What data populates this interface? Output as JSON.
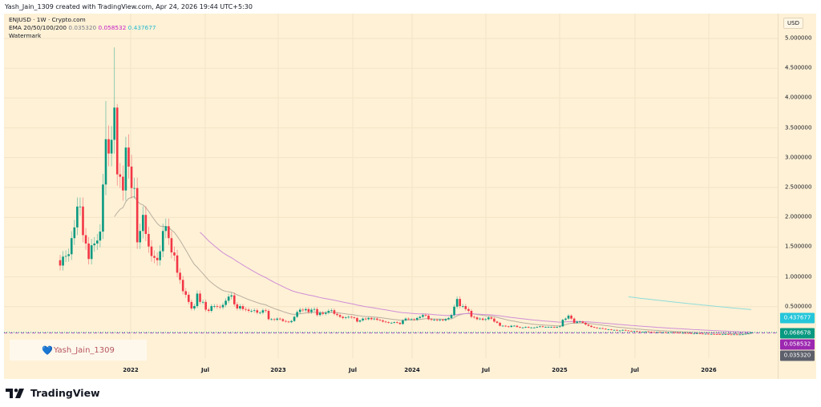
{
  "header": {
    "created_line": "Yash_Jain_1309 created with TradingView.com, Apr 24, 2026 19:44 UTC+5:30"
  },
  "legend": {
    "symbol_line": "ENJUSD · 1W · Crypto.com",
    "ema_label": "EMA 20/50/100/200",
    "ema_values": [
      "0.035320",
      "0.058532",
      "0.437677"
    ],
    "watermark_label": "Watermark"
  },
  "price_axis": {
    "currency": "USD",
    "ticks": [
      "5.000000",
      "4.500000",
      "4.000000",
      "3.500000",
      "3.000000",
      "2.500000",
      "2.000000",
      "1.500000",
      "1.000000",
      "0.500000"
    ],
    "tick_values": [
      5,
      4.5,
      4,
      3.5,
      3,
      2.5,
      2,
      1.5,
      1,
      0.5
    ],
    "labels": [
      {
        "text": "0.437677",
        "value": 0.437677,
        "color": "#26c6da"
      },
      {
        "text": "0.068678",
        "value": 0.068678,
        "color": "#089981"
      },
      {
        "text": "0.058532",
        "value": 0.058532,
        "color": "#9c27b0"
      },
      {
        "text": "0.035320",
        "value": 0.03532,
        "color": "#5d606b"
      }
    ]
  },
  "time_axis": {
    "ticks": [
      "2022",
      "Jul",
      "2023",
      "Jul",
      "2024",
      "Jul",
      "2025",
      "Jul",
      "2026"
    ]
  },
  "watermark": {
    "text": "Yash_Jain_1309",
    "icon": "blue-heart-icon"
  },
  "brand": {
    "name": "TradingView"
  },
  "colors": {
    "up": "#089981",
    "down": "#f23645",
    "ema20": "#b9aea0",
    "ema50": "#d08ed6",
    "ema200": "#8fdcd8",
    "background": "#fef1d6"
  },
  "chart_data": {
    "type": "candlestick",
    "symbol": "ENJUSD",
    "interval": "1W",
    "y_range": [
      0,
      5.1
    ],
    "grid": true,
    "current_price": 0.068678,
    "first_open": 1.28,
    "wick_highs": {
      "19": 4.85,
      "16": 3.95,
      "20": 3.9,
      "23": 3.35
    },
    "closes": [
      1.19,
      1.34,
      1.35,
      1.38,
      1.65,
      1.83,
      2.18,
      2.18,
      1.7,
      1.56,
      1.3,
      1.53,
      1.56,
      1.61,
      1.76,
      2.55,
      3.31,
      3.07,
      3.3,
      3.84,
      2.72,
      2.68,
      2.45,
      3.17,
      2.85,
      2.49,
      2.49,
      1.58,
      1.77,
      2.04,
      1.72,
      1.51,
      1.35,
      1.32,
      1.28,
      1.43,
      1.77,
      1.85,
      1.65,
      1.41,
      1.36,
      1.07,
      0.95,
      0.76,
      0.7,
      0.58,
      0.47,
      0.51,
      0.72,
      0.58,
      0.58,
      0.45,
      0.43,
      0.51,
      0.51,
      0.5,
      0.49,
      0.53,
      0.6,
      0.67,
      0.69,
      0.54,
      0.47,
      0.51,
      0.46,
      0.45,
      0.43,
      0.43,
      0.44,
      0.4,
      0.4,
      0.44,
      0.43,
      0.29,
      0.29,
      0.28,
      0.3,
      0.29,
      0.26,
      0.25,
      0.24,
      0.26,
      0.33,
      0.41,
      0.45,
      0.44,
      0.46,
      0.41,
      0.45,
      0.46,
      0.36,
      0.4,
      0.38,
      0.4,
      0.43,
      0.44,
      0.38,
      0.36,
      0.33,
      0.31,
      0.32,
      0.33,
      0.32,
      0.31,
      0.25,
      0.27,
      0.3,
      0.29,
      0.31,
      0.29,
      0.3,
      0.28,
      0.27,
      0.25,
      0.24,
      0.23,
      0.23,
      0.24,
      0.23,
      0.21,
      0.27,
      0.3,
      0.29,
      0.29,
      0.28,
      0.31,
      0.33,
      0.36,
      0.35,
      0.29,
      0.28,
      0.28,
      0.27,
      0.28,
      0.27,
      0.29,
      0.31,
      0.36,
      0.5,
      0.63,
      0.51,
      0.51,
      0.46,
      0.43,
      0.33,
      0.32,
      0.29,
      0.3,
      0.28,
      0.29,
      0.32,
      0.3,
      0.25,
      0.23,
      0.18,
      0.18,
      0.17,
      0.16,
      0.18,
      0.18,
      0.16,
      0.15,
      0.15,
      0.16,
      0.15,
      0.15,
      0.15,
      0.16,
      0.17,
      0.16,
      0.16,
      0.16,
      0.16,
      0.15,
      0.16,
      0.17,
      0.28,
      0.3,
      0.35,
      0.3,
      0.23,
      0.25,
      0.25,
      0.23,
      0.2,
      0.18,
      0.16,
      0.15,
      0.14,
      0.14,
      0.13,
      0.12,
      0.12,
      0.11,
      0.11,
      0.1,
      0.1,
      0.11,
      0.1,
      0.095,
      0.09,
      0.09,
      0.085,
      0.08,
      0.08,
      0.085,
      0.08,
      0.075,
      0.07,
      0.075,
      0.07,
      0.07,
      0.065,
      0.065,
      0.07,
      0.068,
      0.065,
      0.06,
      0.06,
      0.058,
      0.055,
      0.05,
      0.05,
      0.052,
      0.048,
      0.045,
      0.045,
      0.04,
      0.042,
      0.04,
      0.038,
      0.036,
      0.036,
      0.038,
      0.035,
      0.034,
      0.035,
      0.033,
      0.034,
      0.036,
      0.045,
      0.055,
      0.068678
    ],
    "ema_periods": [
      20,
      50,
      200
    ]
  }
}
